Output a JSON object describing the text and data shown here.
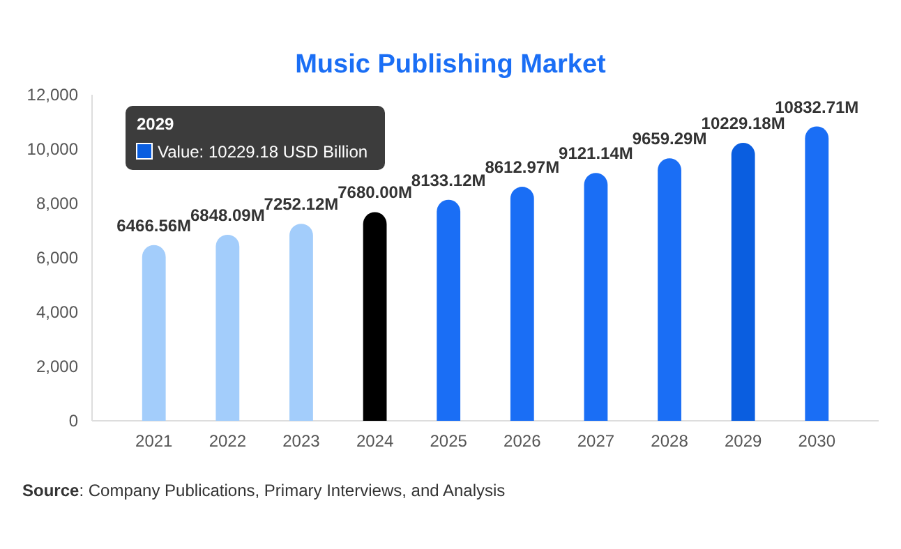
{
  "chart_data": {
    "type": "bar",
    "title": "Music Publishing Market",
    "categories": [
      "2021",
      "2022",
      "2023",
      "2024",
      "2025",
      "2026",
      "2027",
      "2028",
      "2029",
      "2030"
    ],
    "values": [
      6466.56,
      6848.09,
      7252.12,
      7680.0,
      8133.12,
      8612.97,
      9121.14,
      9659.29,
      10229.18,
      10832.71
    ],
    "colors": [
      "#a3cdfb",
      "#a3cdfb",
      "#a3cdfb",
      "#000000",
      "#1a6ef5",
      "#1a6ef5",
      "#1a6ef5",
      "#1a6ef5",
      "#0a5ee0",
      "#1a6ef5"
    ],
    "value_labels": [
      "6466.56M",
      "6848.09M",
      "7252.12M",
      "7680.00M",
      "8133.12M",
      "8612.97M",
      "9121.14M",
      "9659.29M",
      "10229.18M",
      "10832.71M"
    ],
    "ylim": [
      0,
      12000
    ],
    "yticks": [
      {
        "value": 0,
        "label": "0"
      },
      {
        "value": 2000,
        "label": "2,000"
      },
      {
        "value": 4000,
        "label": "4,000"
      },
      {
        "value": 6000,
        "label": "6,000"
      },
      {
        "value": 8000,
        "label": "8,000"
      },
      {
        "value": 10000,
        "label": "10,000"
      },
      {
        "value": 12000,
        "label": "12,000"
      }
    ],
    "grid": false,
    "annotations": [
      "2029\nValue: 10229.18 USD Billion",
      "Source: Company Publications, Primary Interviews, and Analysis"
    ]
  }
}
